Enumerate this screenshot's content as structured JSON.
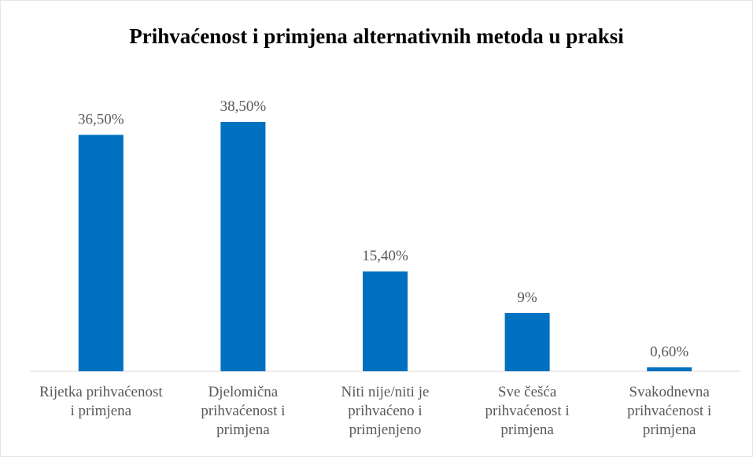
{
  "chart_data": {
    "type": "bar",
    "title": "Prihvaćenost i primjena alternativnih metoda u praksi",
    "categories": [
      "Rijetka prihvaćenost i primjena",
      "Djelomična prihvaćenost i primjena",
      "Niti nije/niti je prihvaćeno i primjenjeno",
      "Sve češća prihvaćenost i primjena",
      "Svakodnevna prihvaćenost i primjena"
    ],
    "values": [
      36.5,
      38.5,
      15.4,
      9,
      0.6
    ],
    "value_labels": [
      "36,50%",
      "38,50%",
      "15,40%",
      "9%",
      "0,60%"
    ],
    "color": "#0070c0"
  }
}
